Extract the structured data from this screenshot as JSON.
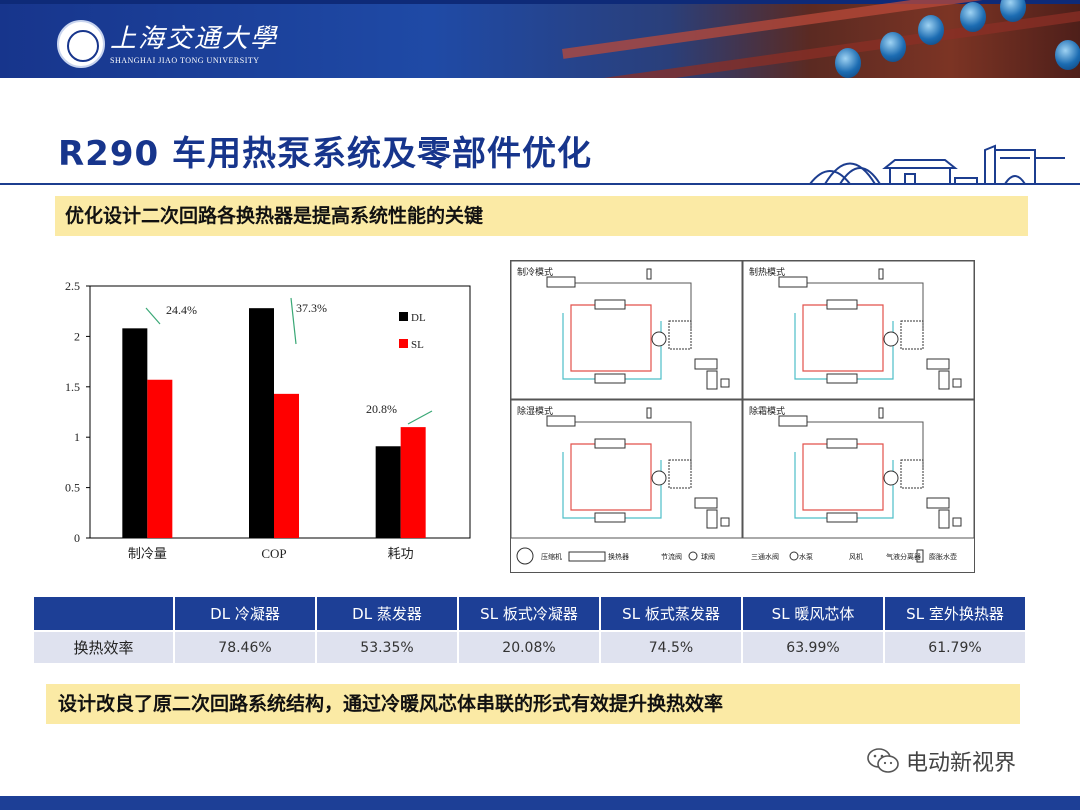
{
  "header": {
    "university_cn": "上海交通大學",
    "university_en": "SHANGHAI JIAO TONG UNIVERSITY"
  },
  "slide": {
    "title": "R290 车用热泵系统及零部件优化",
    "top_banner": "优化设计二次回路各换热器是提高系统性能的关键",
    "bottom_banner": "设计改良了原二次回路系统结构，通过冷暖风芯体串联的形式有效提升换热效率"
  },
  "chart_data": {
    "type": "bar",
    "categories": [
      "制冷量",
      "COP",
      "耗功"
    ],
    "series": [
      {
        "name": "DL",
        "values": [
          2.08,
          2.28,
          0.91
        ],
        "color": "#000000"
      },
      {
        "name": "SL",
        "values": [
          1.57,
          1.43,
          1.1
        ],
        "color": "#ff0000"
      }
    ],
    "annotations": [
      "24.4%",
      "37.3%",
      "20.8%"
    ],
    "ylim": [
      0,
      2.5
    ],
    "yticks": [
      "0",
      "0.5",
      "1",
      "1.5",
      "2",
      "2.5"
    ],
    "legend_position": "top-right",
    "grid": false
  },
  "diagram": {
    "panels": [
      "制冷模式",
      "制热模式",
      "除湿模式",
      "除霜模式"
    ],
    "legend": [
      "压缩机",
      "换热器",
      "节流阀",
      "球阀",
      "三通水阀",
      "水泵",
      "风机",
      "气液分离器",
      "膨胀水壶"
    ]
  },
  "table": {
    "headers": [
      "",
      "DL 冷凝器",
      "DL 蒸发器",
      "SL 板式冷凝器",
      "SL 板式蒸发器",
      "SL 暖风芯体",
      "SL 室外换热器"
    ],
    "row_label": "换热效率",
    "values": [
      "78.46%",
      "53.35%",
      "20.08%",
      "74.5%",
      "63.99%",
      "61.79%"
    ]
  },
  "watermark": "电动新视界",
  "colors": {
    "brand_blue": "#17358c",
    "banner_yellow": "#fbeaa5",
    "dl": "#000000",
    "sl": "#ff0000"
  }
}
